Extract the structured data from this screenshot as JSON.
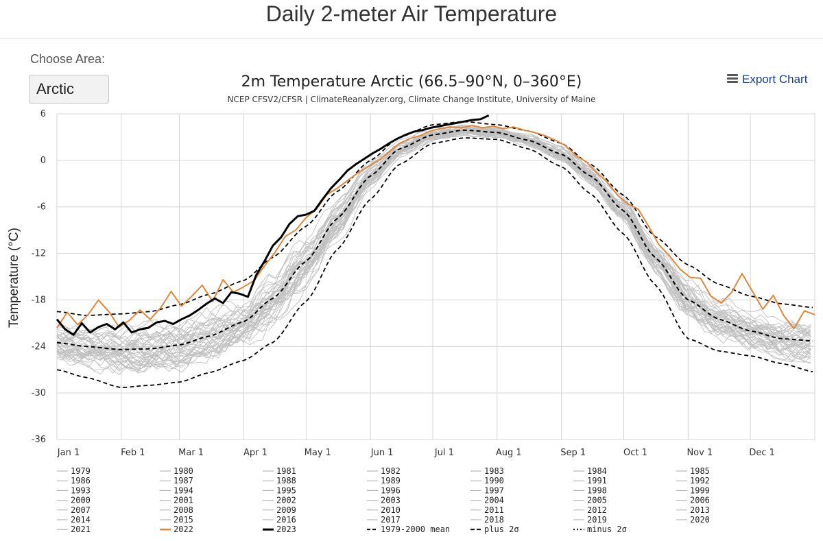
{
  "page": {
    "title": "Daily 2-meter Air Temperature"
  },
  "area": {
    "label": "Choose Area:",
    "selected": "Arctic"
  },
  "export": {
    "label": "Export Chart",
    "icon": "hamburger-menu-icon"
  },
  "colors": {
    "grey": "#c0c0c0",
    "year2022": "#e0873a",
    "year2023": "#000000",
    "mean": "#000000"
  },
  "chart_data": {
    "type": "line",
    "title": "2m Temperature Arctic (66.5–90°N, 0–360°E)",
    "subtitle": "NCEP CFSV2/CFSR | ClimateReanalyzer.org, Climate Change Institute, University of Maine",
    "xlabel": "",
    "ylabel": "Temperature (°C)",
    "xlim": [
      1,
      366
    ],
    "ylim": [
      -36,
      6
    ],
    "yticks": [
      6,
      0,
      -6,
      -12,
      -18,
      -24,
      -30,
      -36
    ],
    "xticks": [
      {
        "day": 1,
        "label": "Jan 1"
      },
      {
        "day": 32,
        "label": "Feb 1"
      },
      {
        "day": 60,
        "label": "Mar 1"
      },
      {
        "day": 91,
        "label": "Apr 1"
      },
      {
        "day": 121,
        "label": "May 1"
      },
      {
        "day": 152,
        "label": "Jun 1"
      },
      {
        "day": 182,
        "label": "Jul 1"
      },
      {
        "day": 213,
        "label": "Aug 1"
      },
      {
        "day": 244,
        "label": "Sep 1"
      },
      {
        "day": 274,
        "label": "Oct 1"
      },
      {
        "day": 305,
        "label": "Nov 1"
      },
      {
        "day": 335,
        "label": "Dec 1"
      }
    ],
    "climatology_anchor_days": [
      1,
      15,
      32,
      46,
      60,
      74,
      91,
      105,
      121,
      136,
      152,
      166,
      182,
      197,
      213,
      228,
      244,
      258,
      274,
      289,
      305,
      320,
      335,
      350,
      366
    ],
    "series": [
      {
        "name": "1979-2000 mean",
        "style": "dashed",
        "values": [
          -23.5,
          -24.0,
          -24.4,
          -24.3,
          -23.8,
          -22.7,
          -20.8,
          -17.8,
          -13.0,
          -7.5,
          -2.0,
          1.5,
          3.3,
          3.9,
          3.6,
          2.6,
          0.8,
          -2.0,
          -6.5,
          -12.5,
          -18.0,
          -20.5,
          -22.0,
          -23.0,
          -23.3
        ]
      },
      {
        "name": "plus 2σ",
        "style": "dashed",
        "values": [
          -19.5,
          -20.0,
          -19.8,
          -19.5,
          -18.6,
          -17.3,
          -15.5,
          -12.5,
          -8.5,
          -4.0,
          0.0,
          3.0,
          4.6,
          5.0,
          4.6,
          3.8,
          2.2,
          -0.5,
          -4.5,
          -9.8,
          -13.5,
          -16.0,
          -17.5,
          -18.5,
          -19.0
        ]
      },
      {
        "name": "minus 2σ",
        "style": "dashed",
        "values": [
          -27.0,
          -28.0,
          -29.3,
          -29.0,
          -28.6,
          -27.4,
          -25.8,
          -23.5,
          -18.2,
          -11.5,
          -5.0,
          -0.5,
          2.2,
          2.9,
          2.7,
          1.5,
          -0.8,
          -4.3,
          -9.5,
          -16.0,
          -23.0,
          -24.6,
          -25.2,
          -26.2,
          -27.3
        ]
      },
      {
        "name": "2022",
        "style": "solid",
        "color": "#e0873a",
        "x": [
          1,
          6,
          11,
          16,
          21,
          26,
          31,
          36,
          41,
          46,
          51,
          56,
          61,
          66,
          71,
          76,
          81,
          86,
          91,
          96,
          101,
          106,
          111,
          116,
          121,
          126,
          131,
          136,
          141,
          146,
          151,
          156,
          161,
          166,
          171,
          176,
          181,
          186,
          191,
          196,
          201,
          206,
          211,
          216,
          221,
          226,
          231,
          236,
          241,
          246,
          251,
          256,
          261,
          266,
          271,
          276,
          281,
          286,
          291,
          296,
          301,
          306,
          311,
          316,
          321,
          326,
          331,
          336,
          341,
          346,
          351,
          356,
          361,
          366
        ],
        "values": [
          -21.6,
          -19.6,
          -21.2,
          -19.9,
          -18.0,
          -19.5,
          -21.5,
          -20.6,
          -19.3,
          -20.5,
          -19.0,
          -16.9,
          -18.8,
          -17.5,
          -16.1,
          -18.2,
          -15.4,
          -17.0,
          -16.3,
          -15.5,
          -13.6,
          -11.9,
          -9.8,
          -9.0,
          -7.4,
          -6.3,
          -4.4,
          -3.6,
          -2.6,
          -1.6,
          -0.8,
          0.0,
          1.1,
          2.2,
          2.8,
          3.2,
          3.8,
          4.1,
          4.3,
          4.2,
          4.5,
          4.2,
          4.4,
          4.1,
          4.3,
          3.9,
          3.6,
          3.2,
          2.6,
          1.9,
          0.6,
          -0.2,
          -1.6,
          -2.8,
          -4.5,
          -5.6,
          -6.3,
          -8.5,
          -10.9,
          -12.3,
          -14.0,
          -15.1,
          -15.2,
          -17.5,
          -18.4,
          -17.0,
          -14.6,
          -16.9,
          -19.2,
          -17.4,
          -20.0,
          -21.7,
          -19.4,
          -19.9
        ]
      },
      {
        "name": "2023",
        "style": "solid-bold",
        "color": "#000000",
        "x": [
          1,
          5,
          9,
          13,
          17,
          21,
          25,
          29,
          33,
          37,
          41,
          45,
          49,
          53,
          57,
          61,
          65,
          69,
          73,
          77,
          81,
          85,
          89,
          93,
          97,
          101,
          105,
          109,
          113,
          117,
          121,
          125,
          129,
          133,
          137,
          141,
          145,
          149,
          153,
          157,
          161,
          165,
          169,
          173,
          177,
          181,
          185,
          189,
          193,
          197,
          201,
          205,
          209
        ],
        "values": [
          -20.5,
          -21.8,
          -22.5,
          -21.0,
          -22.2,
          -21.5,
          -21.1,
          -21.8,
          -20.9,
          -22.2,
          -21.8,
          -21.6,
          -20.9,
          -20.7,
          -21.1,
          -20.5,
          -20.0,
          -19.3,
          -18.5,
          -17.8,
          -18.4,
          -17.0,
          -17.2,
          -17.6,
          -14.8,
          -13.0,
          -11.0,
          -9.9,
          -8.2,
          -7.2,
          -7.0,
          -6.5,
          -5.0,
          -3.6,
          -2.5,
          -1.3,
          -0.5,
          0.2,
          0.9,
          1.5,
          2.2,
          2.8,
          3.3,
          3.7,
          3.9,
          4.2,
          4.4,
          4.6,
          4.8,
          5.0,
          5.2,
          5.3,
          5.8
        ]
      }
    ],
    "legend": {
      "placement": "bottom",
      "entries": [
        "1979",
        "1980",
        "1981",
        "1982",
        "1983",
        "1984",
        "1985",
        "1986",
        "1987",
        "1988",
        "1989",
        "1990",
        "1991",
        "1992",
        "1993",
        "1994",
        "1995",
        "1996",
        "1997",
        "1998",
        "1999",
        "2000",
        "2001",
        "2002",
        "2003",
        "2004",
        "2005",
        "2006",
        "2007",
        "2008",
        "2009",
        "2010",
        "2011",
        "2012",
        "2013",
        "2014",
        "2015",
        "2016",
        "2017",
        "2018",
        "2019",
        "2020",
        "2021",
        "2022",
        "2023",
        "1979-2000 mean",
        "plus 2σ",
        "minus 2σ"
      ]
    }
  }
}
